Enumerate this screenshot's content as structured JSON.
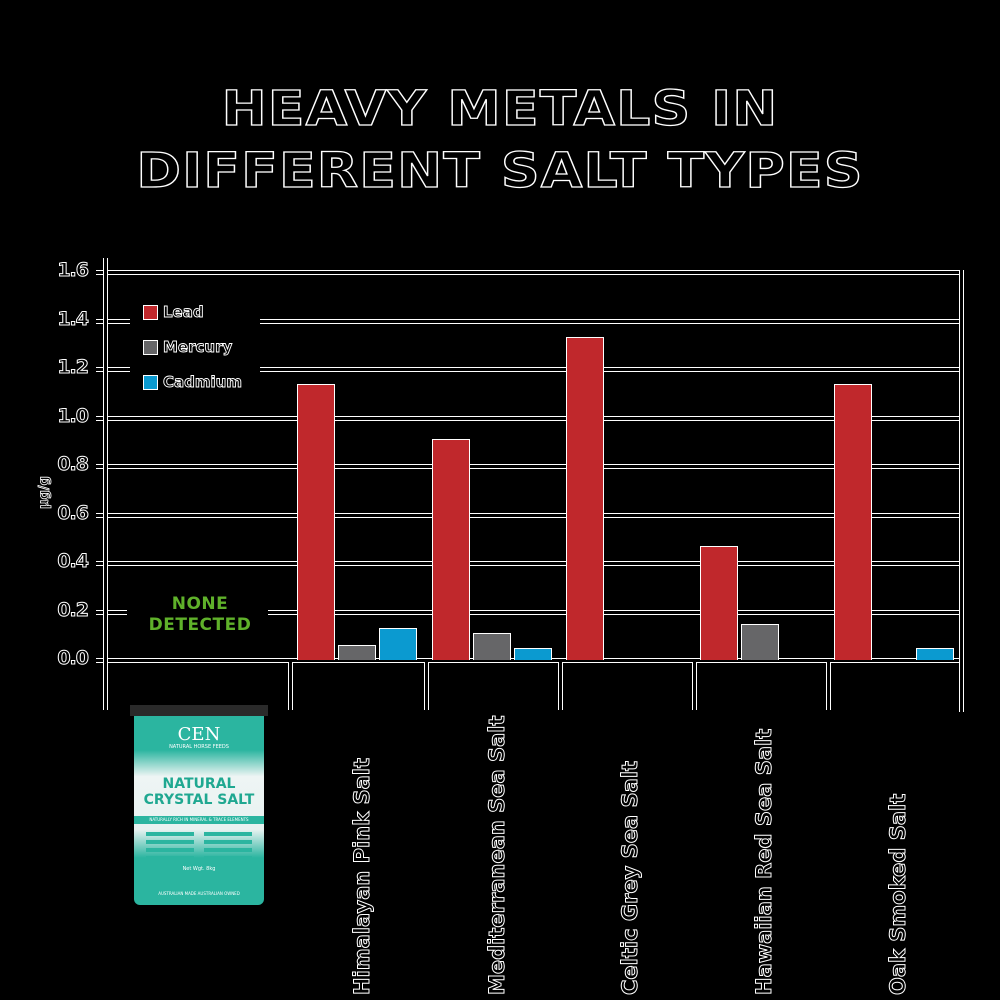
{
  "title": {
    "line1": "HEAVY METALS IN",
    "line2": "DIFFERENT SALT TYPES"
  },
  "y_axis": {
    "label": "µg/g",
    "ticks": [
      "1.6",
      "1.4",
      "1.2",
      "1.0",
      "0.8",
      "0.6",
      "0.4",
      "0.2",
      "0.0"
    ]
  },
  "legend": {
    "items": [
      {
        "label": "Lead",
        "color": "#c0282c"
      },
      {
        "label": "Mercury",
        "color": "#666668"
      },
      {
        "label": "Cadmium",
        "color": "#0b9ad0"
      }
    ]
  },
  "annotation": {
    "line1": "NONE",
    "line2": "DETECTED",
    "color": "#5fb12a"
  },
  "product": {
    "brand": "CEN",
    "brand_sub": "NATURAL HORSE FEEDS",
    "name_line1": "NATURAL",
    "name_line2": "CRYSTAL SALT",
    "band_text": "NATURALLY RICH IN MINERAL & TRACE ELEMENTS",
    "net_weight": "Net Wgt. 8kg",
    "footer": "AUSTRALIAN MADE   AUSTRALIAN OWNED"
  },
  "categories": [
    "Himalayan Pink Salt",
    "Mediterranean Sea Salt",
    "Celtic Grey Sea Salt",
    "Hawaiian Red Sea Salt",
    "Oak Smoked Salt"
  ],
  "chart_data": {
    "type": "bar",
    "title": "HEAVY METALS IN DIFFERENT SALT TYPES",
    "xlabel": "",
    "ylabel": "µg/g",
    "ylim": [
      0,
      1.6
    ],
    "yticks": [
      0.0,
      0.2,
      0.4,
      0.6,
      0.8,
      1.0,
      1.2,
      1.4,
      1.6
    ],
    "grid": true,
    "legend_position": "upper-left",
    "categories": [
      "CEN Natural Crystal Salt",
      "Himalayan Pink Salt",
      "Mediterranean Sea Salt",
      "Celtic Grey Sea Salt",
      "Hawaiian Red Sea Salt",
      "Oak Smoked Salt"
    ],
    "series": [
      {
        "name": "Lead",
        "color": "#c0282c",
        "values": [
          0,
          1.14,
          0.91,
          1.33,
          0.47,
          1.14
        ]
      },
      {
        "name": "Mercury",
        "color": "#666668",
        "values": [
          0,
          0.06,
          0.11,
          0,
          0.15,
          0
        ]
      },
      {
        "name": "Cadmium",
        "color": "#0b9ad0",
        "values": [
          0,
          0.13,
          0.05,
          0,
          0,
          0.05
        ]
      }
    ],
    "annotations": [
      "NONE DETECTED (CEN Natural Crystal Salt)"
    ]
  }
}
